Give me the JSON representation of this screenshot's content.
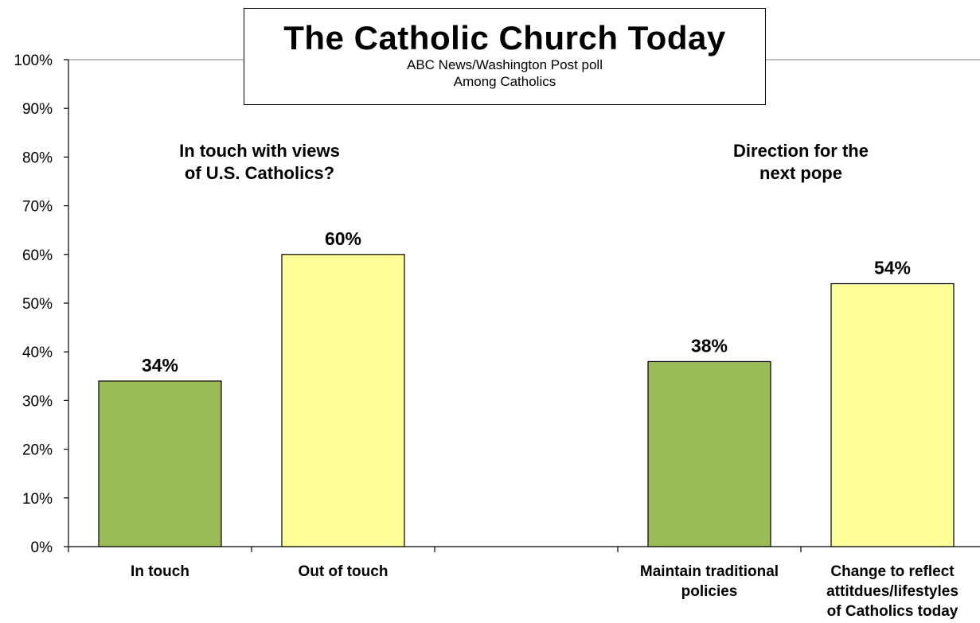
{
  "chart_data": {
    "type": "bar",
    "title": "The Catholic Church Today",
    "subtitle": [
      "ABC News/Washington  Post poll",
      "Among Catholics"
    ],
    "ylim": [
      0,
      100
    ],
    "y_ticks": [
      "0%",
      "10%",
      "20%",
      "30%",
      "40%",
      "50%",
      "60%",
      "70%",
      "80%",
      "90%",
      "100%"
    ],
    "grid": false,
    "groups": [
      {
        "label": [
          "In touch with views",
          "of U.S. Catholics?"
        ],
        "bars": [
          {
            "category": [
              "In touch"
            ],
            "value": 34,
            "label": "34%"
          },
          {
            "category": [
              "Out of touch"
            ],
            "value": 60,
            "label": "60%"
          }
        ]
      },
      {
        "label": [
          "Direction for the",
          "next pope"
        ],
        "bars": [
          {
            "category": [
              "Maintain traditional",
              "policies"
            ],
            "value": 38,
            "label": "38%"
          },
          {
            "category": [
              "Change to reflect",
              "attitdues/lifestyles",
              "of Catholics today"
            ],
            "value": 54,
            "label": "54%"
          }
        ]
      }
    ],
    "colors": {
      "first_bar": "#9bbb59",
      "second_bar": "#ffff99",
      "bar_outline": "#000000",
      "axis": "#000000"
    }
  }
}
